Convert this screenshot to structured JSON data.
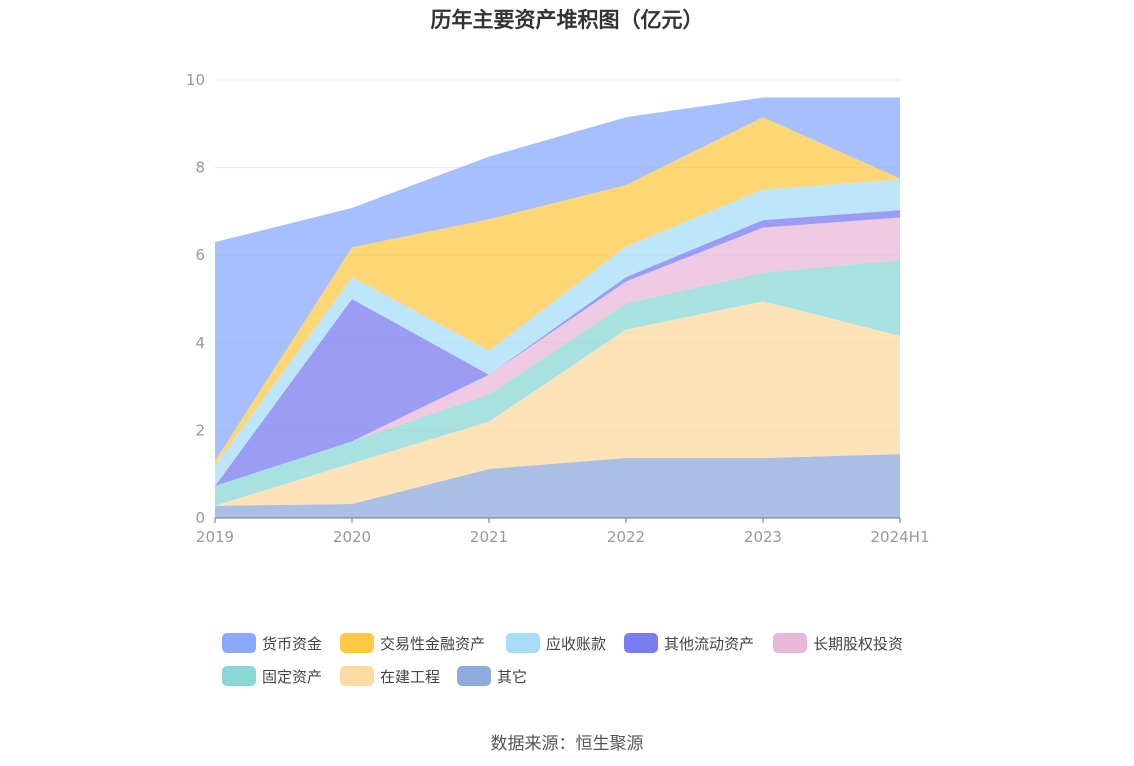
{
  "chart_data": {
    "type": "area",
    "stacked": true,
    "title": "历年主要资产堆积图（亿元）",
    "categories": [
      "2019",
      "2020",
      "2021",
      "2022",
      "2023",
      "2024H1"
    ],
    "ylim": [
      0,
      10
    ],
    "yticks": [
      0,
      2,
      4,
      6,
      8,
      10
    ],
    "grid": true,
    "legend_position": "bottom",
    "series": [
      {
        "name": "其它",
        "color": "#8faadc",
        "values": [
          0.28,
          0.32,
          1.12,
          1.37,
          1.37,
          1.46
        ]
      },
      {
        "name": "在建工程",
        "color": "#ffd9a0",
        "values": [
          0.0,
          0.93,
          1.08,
          2.93,
          3.58,
          2.7
        ]
      },
      {
        "name": "固定资产",
        "color": "#8ad8d5",
        "values": [
          0.45,
          0.5,
          0.62,
          0.6,
          0.65,
          1.73
        ]
      },
      {
        "name": "长期股权投资",
        "color": "#e8b8da",
        "values": [
          0.0,
          0.0,
          0.45,
          0.5,
          1.03,
          0.97
        ]
      },
      {
        "name": "其他流动资产",
        "color": "#7a7cf2",
        "values": [
          0.0,
          3.25,
          0.0,
          0.1,
          0.17,
          0.17
        ]
      },
      {
        "name": "应收账款",
        "color": "#a8ddf8",
        "values": [
          0.47,
          0.5,
          0.55,
          0.7,
          0.7,
          0.7
        ]
      },
      {
        "name": "交易性金融资产",
        "color": "#ffc845",
        "values": [
          0.1,
          0.68,
          3.0,
          1.4,
          1.65,
          0.02
        ]
      },
      {
        "name": "货币资金",
        "color": "#8aa9fb",
        "values": [
          5.0,
          0.9,
          1.43,
          1.55,
          0.45,
          1.85
        ]
      }
    ]
  },
  "legend": [
    {
      "label": "货币资金",
      "color": "#8aa9fb"
    },
    {
      "label": "交易性金融资产",
      "color": "#ffc845"
    },
    {
      "label": "应收账款",
      "color": "#a8ddf8"
    },
    {
      "label": "其他流动资产",
      "color": "#7a7cf2"
    },
    {
      "label": "长期股权投资",
      "color": "#e8b8da"
    },
    {
      "label": "固定资产",
      "color": "#8ad8d5"
    },
    {
      "label": "在建工程",
      "color": "#ffd9a0"
    },
    {
      "label": "其它",
      "color": "#8faadc"
    }
  ],
  "source": "数据来源：恒生聚源"
}
